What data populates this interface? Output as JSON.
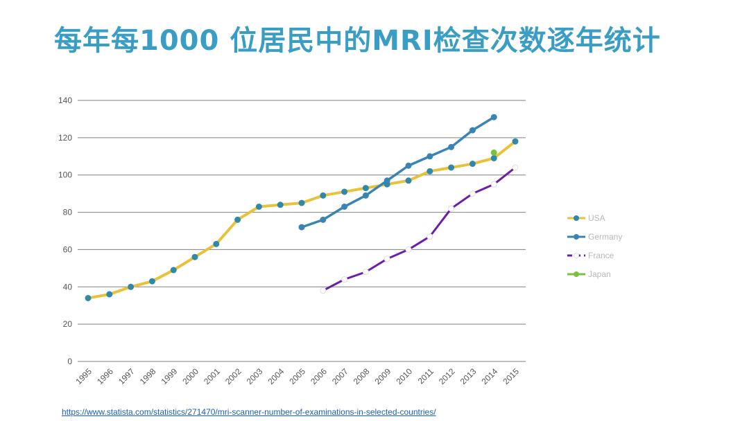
{
  "title": "每年每1000 位居民中的MRI检查次数逐年统计",
  "source_link": "https://www.statista.com/statistics/271470/mri-scanner-number-of-examinations-in-selected-countries/",
  "colors": {
    "USA": "#e8c23a",
    "USA_marker": "#2f89a8",
    "Germany": "#3a84b4",
    "France": "#6a1fa8",
    "France_marker": "#ffffff",
    "Japan": "#7cc040",
    "gridline": "#7f7f7f",
    "tick_text": "#555555",
    "legend_text": "#b8b8b8"
  },
  "chart_data": {
    "type": "line",
    "title": "",
    "xlabel": "",
    "ylabel": "",
    "ylim": [
      0,
      140
    ],
    "yticks": [
      0,
      20,
      40,
      60,
      80,
      100,
      120,
      140
    ],
    "categories": [
      "1995",
      "1996",
      "1997",
      "1998",
      "1999",
      "2000",
      "2001",
      "2002",
      "2003",
      "2004",
      "2005",
      "2006",
      "2007",
      "2008",
      "2009",
      "2010",
      "2011",
      "2012",
      "2013",
      "2014",
      "2015"
    ],
    "grid": true,
    "legend_position": "right",
    "series": [
      {
        "name": "USA",
        "values": [
          34,
          36,
          40,
          43,
          49,
          56,
          63,
          76,
          83,
          84,
          85,
          89,
          91,
          93,
          95,
          97,
          102,
          104,
          106,
          109,
          118
        ]
      },
      {
        "name": "Germany",
        "values": [
          null,
          null,
          null,
          null,
          null,
          null,
          null,
          null,
          null,
          null,
          72,
          76,
          83,
          89,
          97,
          105,
          110,
          115,
          124,
          131,
          null
        ]
      },
      {
        "name": "France",
        "values": [
          null,
          null,
          null,
          null,
          null,
          null,
          null,
          null,
          null,
          null,
          null,
          38,
          44,
          48,
          55,
          60,
          67,
          82,
          90,
          95,
          104
        ]
      },
      {
        "name": "Japan",
        "values": [
          null,
          null,
          null,
          null,
          null,
          null,
          null,
          null,
          null,
          null,
          null,
          null,
          null,
          null,
          null,
          null,
          null,
          null,
          null,
          112,
          null
        ]
      }
    ]
  }
}
